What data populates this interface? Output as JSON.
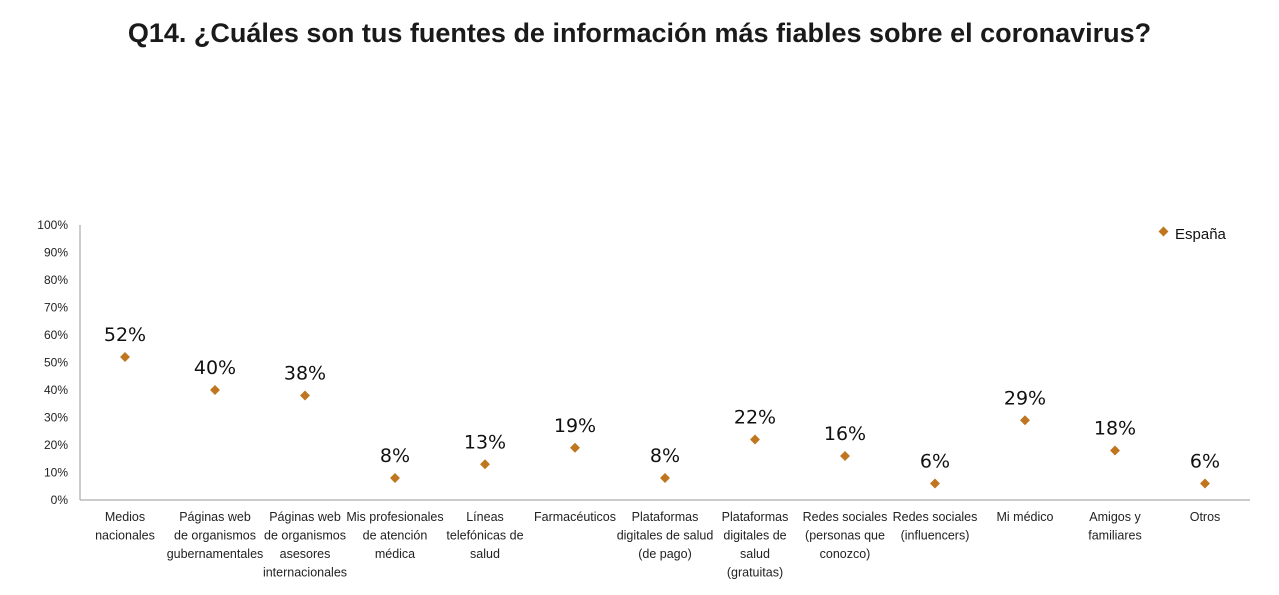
{
  "chart_data": {
    "type": "scatter",
    "title": "Q14. ¿Cuáles son tus fuentes de información más fiables sobre el coronavirus?",
    "xlabel": "",
    "ylabel": "",
    "ylim": [
      0,
      100
    ],
    "yticks": [
      "0%",
      "10%",
      "20%",
      "30%",
      "40%",
      "50%",
      "60%",
      "70%",
      "80%",
      "90%",
      "100%"
    ],
    "grid": false,
    "legend_position": "top-right",
    "marker_color": "#C0751F",
    "categories": [
      [
        "Medios",
        "nacionales"
      ],
      [
        "Páginas web",
        "de organismos",
        "gubernamentales"
      ],
      [
        "Páginas web",
        "de organismos",
        "asesores",
        "internacionales"
      ],
      [
        "Mis profesionales",
        "de atención",
        "médica"
      ],
      [
        "Líneas",
        "telefónicas de",
        "salud"
      ],
      [
        "Farmacéuticos"
      ],
      [
        "Plataformas",
        "digitales de salud",
        "(de pago)"
      ],
      [
        "Plataformas",
        "digitales de",
        "salud",
        "(gratuitas)"
      ],
      [
        "Redes sociales",
        "(personas que",
        "conozco)"
      ],
      [
        "Redes sociales",
        "(influencers)"
      ],
      [
        "Mi médico"
      ],
      [
        "Amigos y",
        "familiares"
      ],
      [
        "Otros"
      ]
    ],
    "series": [
      {
        "name": "España",
        "values": [
          52,
          40,
          38,
          8,
          13,
          19,
          8,
          22,
          16,
          6,
          29,
          18,
          6
        ],
        "labels": [
          "52%",
          "40%",
          "38%",
          "8%",
          "13%",
          "19%",
          "8%",
          "22%",
          "16%",
          "6%",
          "29%",
          "18%",
          "6%"
        ]
      }
    ]
  }
}
